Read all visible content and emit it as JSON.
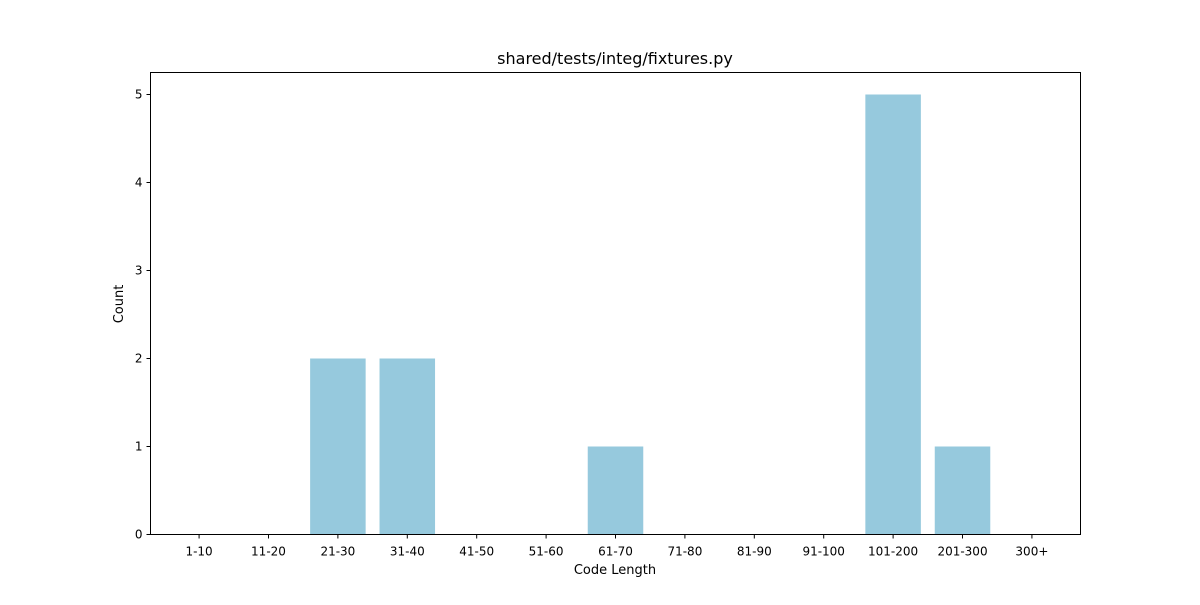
{
  "chart_data": {
    "type": "bar",
    "title": "shared/tests/integ/fixtures.py",
    "xlabel": "Code Length",
    "ylabel": "Count",
    "categories": [
      "1-10",
      "11-20",
      "21-30",
      "31-40",
      "41-50",
      "51-60",
      "61-70",
      "71-80",
      "81-90",
      "91-100",
      "101-200",
      "201-300",
      "300+"
    ],
    "values": [
      0,
      0,
      2,
      2,
      0,
      0,
      1,
      0,
      0,
      0,
      5,
      1,
      0
    ],
    "ylim": [
      0,
      5.25
    ],
    "yticks": [
      0,
      1,
      2,
      3,
      4,
      5
    ],
    "grid": false,
    "bar_color": "#96c9dd"
  }
}
